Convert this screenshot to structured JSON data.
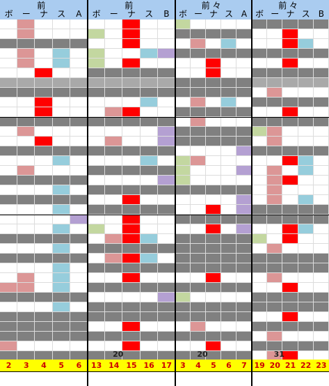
{
  "colors": {
    "header": "#aaccf0",
    "gray": "#808080",
    "lightgray": "#a9a9a9",
    "pink": "#dc9696",
    "red": "#ff0000",
    "blue": "#96cddc",
    "purple": "#b4a0d2",
    "green": "#c3d7a0",
    "white": "#ffffff",
    "yellow": "#ffff00"
  },
  "groups": [
    {
      "title": "前",
      "labels": [
        "ボ",
        "ー",
        "ナ",
        "ス",
        "A"
      ],
      "footer": [
        "2",
        "3",
        "4",
        "5",
        "6"
      ],
      "badge": null,
      "rows": [
        "_P___",
        "_P___",
        "GGGGG",
        "_P_B_",
        "_P_B_",
        "__R__",
        "LLLLL",
        "GGGGG",
        "__R__",
        "__R__",
        "GGGGG",
        "_P___",
        "__R__",
        "GGGGG",
        "___B_",
        "_P___",
        "GGGGG",
        "___B_",
        "GGGGG",
        "___B_",
        "____U",
        "___B_",
        "GGGGG",
        "___B_",
        "GGGGG",
        "___B_",
        "_P_B_",
        "PP_B_",
        "GGGGG",
        "___B_",
        "GGGGG",
        "GGGGG",
        "GGGGG",
        "P____",
        "GGGGG"
      ]
    },
    {
      "title": "前",
      "labels": [
        "ボ",
        "ー",
        "ナ",
        "ス",
        "B"
      ],
      "footer": [
        "13",
        "14",
        "15",
        "16",
        "17"
      ],
      "badge": "20",
      "rows": [
        "__R__",
        "V_R__",
        "__R__",
        "V__BU",
        "V_R__",
        "GGGGG",
        "LLLLL",
        "GGGGG",
        "___B_",
        "_PR__",
        "GGGGG",
        "____U",
        "_P__U",
        "GGGGG",
        "___B_",
        "GGGGG",
        "____U",
        "GGGGG",
        "__R__",
        "GGGGG",
        "__R__",
        "V_R__",
        "_PRB_",
        "GGGGG",
        "_PRB_",
        "GGGGG",
        "__R__",
        "GGGGG",
        "____U",
        "GGGGG",
        "GGGGG",
        "__R__",
        "GGGGG",
        "__R__",
        "GGGGG"
      ]
    },
    {
      "title": "前 々",
      "labels": [
        "ボ",
        "ー",
        "ナ",
        "ス",
        "A"
      ],
      "footer": [
        "3",
        "4",
        "5",
        "6",
        "7"
      ],
      "badge": "20",
      "rows": [
        "V____",
        "GGGGG",
        "_P_B_",
        "GGGGG",
        "__R__",
        "__R__",
        "GGGGG",
        "GGGGG",
        "_P_B_",
        "GGGGG",
        "_P___",
        "GGGGG",
        "GGGGG",
        "____U",
        "VP___",
        "V___U",
        "V____",
        "GGGGG",
        "____U",
        "__R_U",
        "GGGGG",
        "__R_U",
        "GGGGG",
        "GGGGG",
        "GGGGG",
        "GGGGG",
        "__R__",
        "GGGGG",
        "V____",
        "GGGGG",
        "GGGGG",
        "_P___",
        "GGGGG",
        "__R__",
        "GGGGG"
      ]
    },
    {
      "title": "前 々",
      "labels": [
        "ボ",
        "ー",
        "ナ",
        "ス",
        "B"
      ],
      "footer": [
        "19",
        "20",
        "21",
        "22",
        "23"
      ],
      "badge": "31",
      "rows": [
        "GGGGG",
        "__R__",
        "__RB_",
        "GGGGG",
        "__R__",
        "GGGGG",
        "LLLLL",
        "_P___",
        "GGGGG",
        "__R__",
        "GGGGG",
        "VP___",
        "_P___",
        "GGGGG",
        "__RB_",
        "_P_B_",
        "_PR__",
        "_P___",
        "_P_B_",
        "GGGGG",
        "GGGGG",
        "__RB_",
        "V_R__",
        "_P___",
        "GGGGG",
        "GGGGG",
        "_P___",
        "__R__",
        "GGGGG",
        "GGGGG",
        "__R__",
        "GGGGG",
        "_P___",
        "GGGGG",
        "_PR__"
      ]
    }
  ]
}
